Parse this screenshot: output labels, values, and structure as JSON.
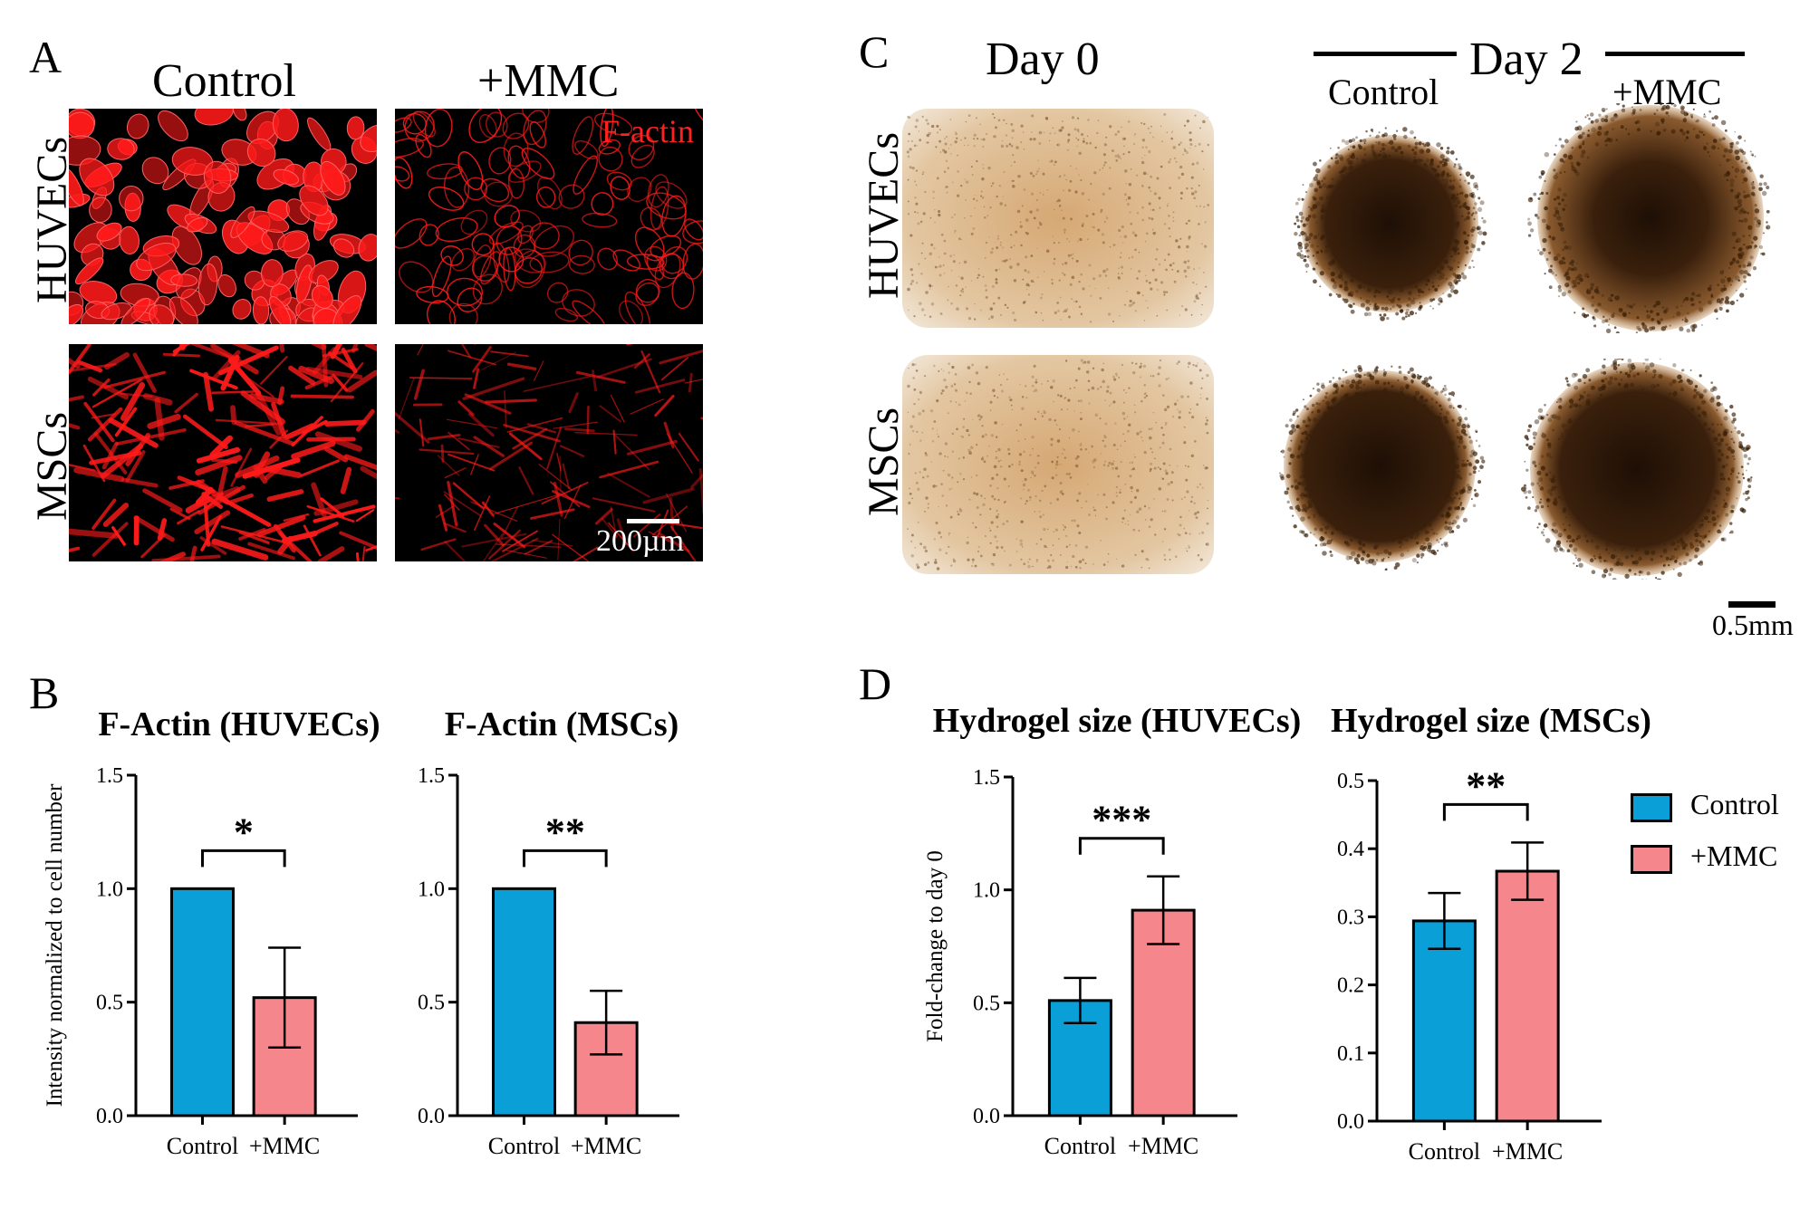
{
  "panel_letters": {
    "a": "A",
    "b": "B",
    "c": "C",
    "d": "D"
  },
  "panel_a": {
    "col_headers": [
      "Control",
      "+MMC"
    ],
    "row_labels": [
      "HUVECs",
      "MSCs"
    ],
    "stain_label": "F-actin",
    "scale_label": "200µm",
    "colors": {
      "stain": "#ff1a1a",
      "background": "#000000"
    }
  },
  "panel_c": {
    "day0_label": "Day 0",
    "day2_label": "Day 2",
    "col_headers": [
      "Control",
      "+MMC"
    ],
    "row_labels": [
      "HUVECs",
      "MSCs"
    ],
    "scale_label": "0.5mm",
    "colors": {
      "gel": "#d9b48a",
      "dark_core": "#2a1608"
    }
  },
  "legend": {
    "items": [
      {
        "label": "Control",
        "color": "#0a9fd6"
      },
      {
        "label": "+MMC",
        "color": "#f5868c"
      }
    ]
  },
  "chart_data": [
    {
      "type": "bar",
      "title": "F-Actin (HUVECs)",
      "ylabel": "Intensity normalized to cell number",
      "categories": [
        "Control",
        "+MMC"
      ],
      "values": [
        1.0,
        0.52
      ],
      "errors": [
        0,
        0.22
      ],
      "ylim": [
        0,
        1.5
      ],
      "yticks": [
        "0.0",
        "0.5",
        "1.0",
        "1.5"
      ],
      "yticks_values": [
        0,
        0.5,
        1.0,
        1.5
      ],
      "significance": "*",
      "colors": [
        "#0a9fd6",
        "#f5868c"
      ]
    },
    {
      "type": "bar",
      "title": "F-Actin (MSCs)",
      "ylabel": "",
      "categories": [
        "Control",
        "+MMC"
      ],
      "values": [
        1.0,
        0.41
      ],
      "errors": [
        0,
        0.14
      ],
      "ylim": [
        0,
        1.5
      ],
      "yticks": [
        "0.0",
        "0.5",
        "1.0",
        "1.5"
      ],
      "yticks_values": [
        0,
        0.5,
        1.0,
        1.5
      ],
      "significance": "**",
      "colors": [
        "#0a9fd6",
        "#f5868c"
      ]
    },
    {
      "type": "bar",
      "title": "Hydrogel size (HUVECs)",
      "ylabel": "Fold-change to day 0",
      "categories": [
        "Control",
        "+MMC"
      ],
      "values": [
        0.51,
        0.91
      ],
      "errors": [
        0.1,
        0.15
      ],
      "ylim": [
        0,
        1.5
      ],
      "yticks": [
        "0.0",
        "0.5",
        "1.0",
        "1.5"
      ],
      "yticks_values": [
        0,
        0.5,
        1.0,
        1.5
      ],
      "significance": "***",
      "colors": [
        "#0a9fd6",
        "#f5868c"
      ]
    },
    {
      "type": "bar",
      "title": "Hydrogel size (MSCs)",
      "ylabel": "",
      "categories": [
        "Control",
        "+MMC"
      ],
      "values": [
        0.294,
        0.367
      ],
      "errors": [
        0.041,
        0.042
      ],
      "ylim": [
        0,
        0.5
      ],
      "yticks": [
        "0.0",
        "0.1",
        "0.2",
        "0.3",
        "0.4",
        "0.5"
      ],
      "yticks_values": [
        0,
        0.1,
        0.2,
        0.3,
        0.4,
        0.5
      ],
      "significance": "**",
      "colors": [
        "#0a9fd6",
        "#f5868c"
      ]
    }
  ]
}
